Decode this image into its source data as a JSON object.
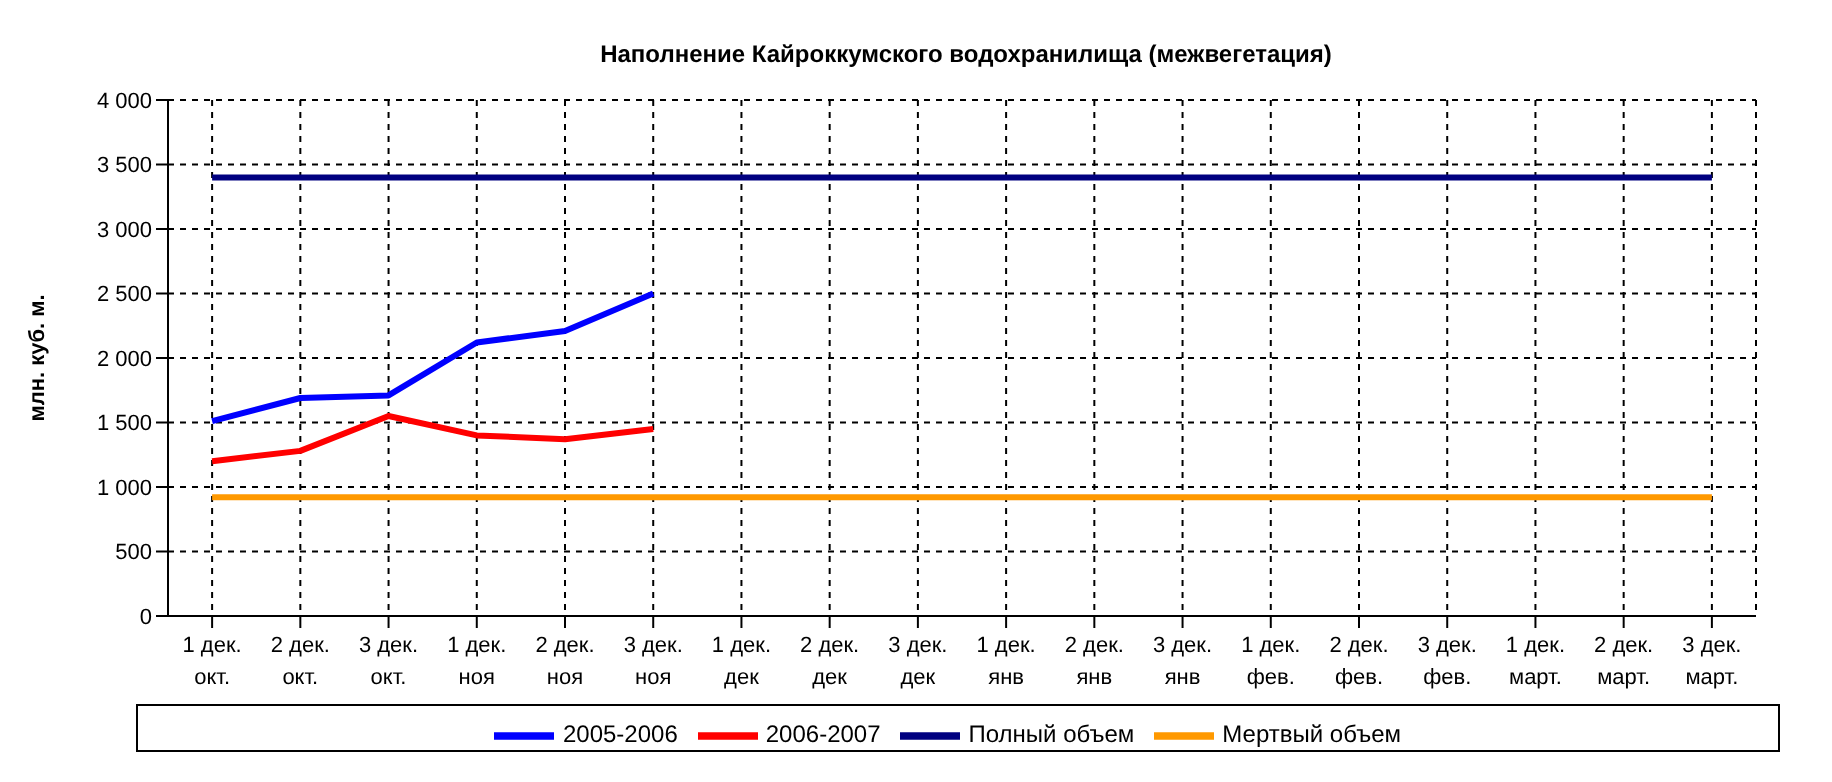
{
  "chart_data": {
    "type": "line",
    "title": "Наполнение Кайроккумского водохранилища (межвегетация)",
    "ylabel": "млн. куб. м.",
    "categories": [
      "1 дек.\nокт.",
      "2 дек.\nокт.",
      "3 дек.\nокт.",
      "1 дек.\nноя",
      "2 дек.\nноя",
      "3 дек.\nноя",
      "1 дек.\nдек",
      "2 дек.\nдек",
      "3 дек.\nдек",
      "1 дек.\nянв",
      "2 дек.\nянв",
      "3 дек.\nянв",
      "1 дек.\nфев.",
      "2 дек.\nфев.",
      "3 дек.\nфев.",
      "1 дек.\nмарт.",
      "2 дек.\nмарт.",
      "3 дек.\nмарт."
    ],
    "series": [
      {
        "name": "2005-2006",
        "color": "#0000ff",
        "values": [
          1510,
          1690,
          1710,
          2120,
          2210,
          2500,
          null,
          null,
          null,
          null,
          null,
          null,
          null,
          null,
          null,
          null,
          null,
          null
        ]
      },
      {
        "name": "2006-2007",
        "color": "#ff0000",
        "values": [
          1200,
          1280,
          1550,
          1400,
          1370,
          1450,
          null,
          null,
          null,
          null,
          null,
          null,
          null,
          null,
          null,
          null,
          null,
          null
        ]
      },
      {
        "name": "Полный объем",
        "color": "#000080",
        "values": [
          3400,
          3400,
          3400,
          3400,
          3400,
          3400,
          3400,
          3400,
          3400,
          3400,
          3400,
          3400,
          3400,
          3400,
          3400,
          3400,
          3400,
          3400
        ]
      },
      {
        "name": "Мертвый объем",
        "color": "#ff9900",
        "values": [
          920,
          920,
          920,
          920,
          920,
          920,
          920,
          920,
          920,
          920,
          920,
          920,
          920,
          920,
          920,
          920,
          920,
          920
        ]
      }
    ],
    "ylim": [
      0,
      4000
    ],
    "yticks": [
      {
        "value": 0,
        "label": "0"
      },
      {
        "value": 500,
        "label": "500"
      },
      {
        "value": 1000,
        "label": "1 000"
      },
      {
        "value": 1500,
        "label": "1 500"
      },
      {
        "value": 2000,
        "label": "2 000"
      },
      {
        "value": 2500,
        "label": "2 500"
      },
      {
        "value": 3000,
        "label": "3 000"
      },
      {
        "value": 3500,
        "label": "3 500"
      },
      {
        "value": 4000,
        "label": "4 000"
      }
    ],
    "grid": true,
    "legend": "bottom",
    "marker": "none",
    "line_style": "solid"
  }
}
